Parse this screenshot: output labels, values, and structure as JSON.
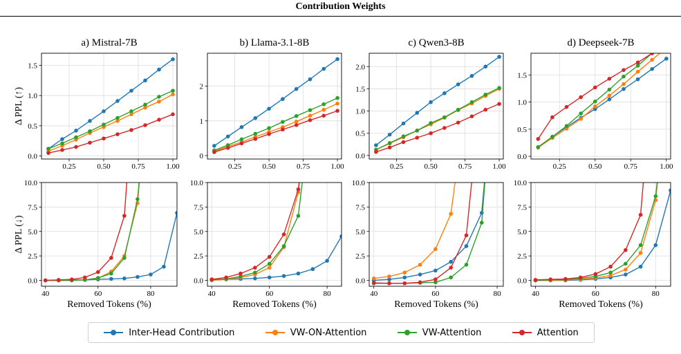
{
  "header": {
    "title": "Contribution Weights"
  },
  "legend": {
    "items": [
      {
        "label": "Inter-Head Contribution",
        "color": "#1f77b4"
      },
      {
        "label": "VW-ON-Attention",
        "color": "#ff7f0e"
      },
      {
        "label": "VW-Attention",
        "color": "#2ca02c"
      },
      {
        "label": "Attention",
        "color": "#d62728"
      }
    ]
  },
  "chart_data": [
    {
      "type": "line",
      "title": "a) Mistral-7B",
      "xlabel": "",
      "ylabel": "Δ PPL (↑)",
      "xlim": [
        0.05,
        1.03
      ],
      "ylim": [
        -0.05,
        1.7
      ],
      "xticks": [
        0.25,
        0.5,
        0.75,
        1.0
      ],
      "xticklabels": [
        "0.25",
        "0.50",
        "0.75",
        "1.00"
      ],
      "yticks": [
        0,
        0.5,
        1.0,
        1.5
      ],
      "yticklabels": [
        "0.0",
        "0.5",
        "1.0",
        "1.5"
      ],
      "x": [
        0.1,
        0.2,
        0.3,
        0.4,
        0.5,
        0.6,
        0.7,
        0.8,
        0.9,
        1.0
      ],
      "series": [
        {
          "name": "Inter-Head Contribution",
          "values": [
            0.12,
            0.28,
            0.42,
            0.58,
            0.74,
            0.91,
            1.08,
            1.25,
            1.43,
            1.6
          ]
        },
        {
          "name": "VW-ON-Attention",
          "values": [
            0.08,
            0.17,
            0.27,
            0.38,
            0.48,
            0.58,
            0.69,
            0.8,
            0.9,
            1.02
          ]
        },
        {
          "name": "VW-Attention",
          "values": [
            0.12,
            0.21,
            0.31,
            0.41,
            0.52,
            0.63,
            0.74,
            0.85,
            0.98,
            1.08
          ]
        },
        {
          "name": "Attention",
          "values": [
            0.05,
            0.1,
            0.15,
            0.22,
            0.29,
            0.36,
            0.43,
            0.51,
            0.6,
            0.69
          ]
        }
      ]
    },
    {
      "type": "line",
      "title": "b) Llama-3.1-8B",
      "xlabel": "",
      "ylabel": "",
      "xlim": [
        0.05,
        1.03
      ],
      "ylim": [
        -0.1,
        2.95
      ],
      "xticks": [
        0.25,
        0.5,
        0.75,
        1.0
      ],
      "xticklabels": [
        "0.25",
        "0.50",
        "0.75",
        "1.00"
      ],
      "yticks": [
        0,
        1,
        2
      ],
      "yticklabels": [
        "0",
        "1",
        "2"
      ],
      "x": [
        0.1,
        0.2,
        0.3,
        0.4,
        0.5,
        0.6,
        0.7,
        0.8,
        0.9,
        1.0
      ],
      "series": [
        {
          "name": "Inter-Head Contribution",
          "values": [
            0.28,
            0.55,
            0.82,
            1.08,
            1.35,
            1.63,
            1.92,
            2.2,
            2.5,
            2.78
          ]
        },
        {
          "name": "VW-ON-Attention",
          "values": [
            0.12,
            0.26,
            0.39,
            0.54,
            0.68,
            0.82,
            0.98,
            1.15,
            1.32,
            1.5
          ]
        },
        {
          "name": "VW-Attention",
          "values": [
            0.15,
            0.3,
            0.47,
            0.63,
            0.79,
            0.97,
            1.14,
            1.31,
            1.48,
            1.66
          ]
        },
        {
          "name": "Attention",
          "values": [
            0.1,
            0.22,
            0.35,
            0.48,
            0.62,
            0.75,
            0.88,
            1.02,
            1.15,
            1.29
          ]
        }
      ]
    },
    {
      "type": "line",
      "title": "c) Qwen3-8B",
      "xlabel": "",
      "ylabel": "",
      "xlim": [
        0.05,
        1.03
      ],
      "ylim": [
        -0.08,
        2.3
      ],
      "xticks": [
        0.25,
        0.5,
        0.75,
        1.0
      ],
      "xticklabels": [
        "0.25",
        "0.50",
        "0.75",
        "1.00"
      ],
      "yticks": [
        0,
        0.5,
        1.0,
        1.5,
        2.0
      ],
      "yticklabels": [
        "0.0",
        "0.5",
        "1.0",
        "1.5",
        "2.0"
      ],
      "x": [
        0.1,
        0.2,
        0.3,
        0.4,
        0.5,
        0.6,
        0.7,
        0.8,
        0.9,
        1.0
      ],
      "series": [
        {
          "name": "Inter-Head Contribution",
          "values": [
            0.23,
            0.47,
            0.72,
            0.96,
            1.2,
            1.4,
            1.6,
            1.79,
            2.0,
            2.22
          ]
        },
        {
          "name": "VW-ON-Attention",
          "values": [
            0.13,
            0.27,
            0.41,
            0.56,
            0.7,
            0.85,
            1.02,
            1.17,
            1.34,
            1.5
          ]
        },
        {
          "name": "VW-Attention",
          "values": [
            0.13,
            0.28,
            0.43,
            0.56,
            0.73,
            0.86,
            1.03,
            1.2,
            1.37,
            1.52
          ]
        },
        {
          "name": "Attention",
          "values": [
            0.08,
            0.18,
            0.3,
            0.4,
            0.5,
            0.62,
            0.74,
            0.88,
            1.03,
            1.16
          ]
        }
      ]
    },
    {
      "type": "line",
      "title": "d) Deepseek-7B",
      "xlabel": "",
      "ylabel": "",
      "xlim": [
        0.05,
        1.03
      ],
      "ylim": [
        -0.05,
        1.9
      ],
      "xticks": [
        0.25,
        0.5,
        0.75,
        1.0
      ],
      "xticklabels": [
        "0.25",
        "0.50",
        "0.75",
        "1.00"
      ],
      "yticks": [
        0,
        0.5,
        1.0,
        1.5
      ],
      "yticklabels": [
        "0.0",
        "0.5",
        "1.0",
        "1.5"
      ],
      "x": [
        0.1,
        0.2,
        0.3,
        0.4,
        0.5,
        0.6,
        0.7,
        0.8,
        0.9,
        1.0
      ],
      "series": [
        {
          "name": "Inter-Head Contribution",
          "values": [
            0.17,
            0.36,
            0.54,
            0.71,
            0.87,
            1.05,
            1.24,
            1.42,
            1.61,
            1.8
          ]
        },
        {
          "name": "VW-ON-Attention",
          "values": [
            0.16,
            0.34,
            0.51,
            0.69,
            0.92,
            1.12,
            1.33,
            1.56,
            1.78,
            2.0
          ]
        },
        {
          "name": "VW-Attention",
          "values": [
            0.17,
            0.36,
            0.56,
            0.79,
            1.01,
            1.23,
            1.47,
            1.67,
            1.9,
            2.1
          ]
        },
        {
          "name": "Attention",
          "values": [
            0.32,
            0.72,
            0.91,
            1.09,
            1.27,
            1.43,
            1.59,
            1.73,
            1.9,
            2.05
          ]
        }
      ]
    },
    {
      "type": "line",
      "title": "",
      "xlabel": "Removed Tokens (%)",
      "ylabel": "Δ PPL (↓)",
      "xlim": [
        38.5,
        90
      ],
      "ylim": [
        -0.6,
        10
      ],
      "xticks": [
        40,
        60,
        80
      ],
      "xticklabels": [
        "40",
        "60",
        "80"
      ],
      "yticks": [
        0,
        2.5,
        5.0,
        7.5,
        10.0
      ],
      "yticklabels": [
        "0.0",
        "2.5",
        "5.0",
        "7.5",
        "10.0"
      ],
      "series": [
        {
          "name": "Inter-Head Contribution",
          "x": [
            40,
            45,
            50,
            55,
            60,
            65,
            70,
            75,
            80,
            85,
            90
          ],
          "values": [
            0.0,
            0.0,
            0.05,
            0.05,
            0.1,
            0.15,
            0.2,
            0.35,
            0.6,
            1.4,
            6.9
          ]
        },
        {
          "name": "VW-ON-Attention",
          "x": [
            40,
            45,
            50,
            55,
            60,
            65,
            70,
            75,
            77
          ],
          "values": [
            0.0,
            0.0,
            0.0,
            0.05,
            0.2,
            0.9,
            2.5,
            7.9,
            14.0
          ]
        },
        {
          "name": "VW-Attention",
          "x": [
            40,
            45,
            50,
            55,
            60,
            65,
            70,
            75,
            77
          ],
          "values": [
            0.0,
            0.0,
            0.0,
            0.05,
            0.25,
            0.7,
            2.3,
            8.3,
            14.0
          ]
        },
        {
          "name": "Attention",
          "x": [
            40,
            45,
            50,
            55,
            60,
            65,
            70,
            72
          ],
          "values": [
            0.0,
            0.05,
            0.1,
            0.3,
            0.85,
            2.3,
            6.6,
            14.0
          ]
        }
      ]
    },
    {
      "type": "line",
      "title": "",
      "xlabel": "Removed Tokens (%)",
      "ylabel": "",
      "xlim": [
        38.5,
        85
      ],
      "ylim": [
        -0.6,
        10
      ],
      "xticks": [
        40,
        60,
        80
      ],
      "xticklabels": [
        "40",
        "60",
        "80"
      ],
      "yticks": [
        0,
        2.5,
        5.0,
        7.5,
        10.0
      ],
      "yticklabels": [
        "0.0",
        "2.5",
        "5.0",
        "7.5",
        "10.0"
      ],
      "series": [
        {
          "name": "Inter-Head Contribution",
          "x": [
            40,
            45,
            50,
            55,
            60,
            65,
            70,
            75,
            80,
            85,
            86
          ],
          "values": [
            0.1,
            0.1,
            0.15,
            0.2,
            0.3,
            0.45,
            0.7,
            1.15,
            2.0,
            4.5,
            7.2
          ]
        },
        {
          "name": "VW-ON-Attention",
          "x": [
            40,
            45,
            50,
            55,
            60,
            65,
            70,
            72
          ],
          "values": [
            0.0,
            0.1,
            0.3,
            0.6,
            1.3,
            3.4,
            9.0,
            14.0
          ]
        },
        {
          "name": "VW-Attention",
          "x": [
            40,
            45,
            50,
            55,
            60,
            65,
            70,
            73
          ],
          "values": [
            0.05,
            0.15,
            0.4,
            0.8,
            1.7,
            3.5,
            6.6,
            14.0
          ]
        },
        {
          "name": "Attention",
          "x": [
            40,
            45,
            50,
            55,
            60,
            65,
            70,
            72
          ],
          "values": [
            0.1,
            0.3,
            0.7,
            1.3,
            2.4,
            4.7,
            9.3,
            14.0
          ]
        }
      ]
    },
    {
      "type": "line",
      "title": "",
      "xlabel": "Removed Tokens (%)",
      "ylabel": "",
      "xlim": [
        38.5,
        82
      ],
      "ylim": [
        -0.6,
        10
      ],
      "xticks": [
        40,
        60,
        80
      ],
      "xticklabels": [
        "40",
        "60",
        "80"
      ],
      "yticks": [
        0,
        2.5,
        5.0,
        7.5,
        10.0
      ],
      "yticklabels": [
        "0.0",
        "2.5",
        "5.0",
        "7.5",
        "10.0"
      ],
      "series": [
        {
          "name": "Inter-Head Contribution",
          "x": [
            40,
            45,
            50,
            55,
            60,
            65,
            70,
            75,
            77
          ],
          "values": [
            0.0,
            0.1,
            0.3,
            0.6,
            1.0,
            1.9,
            3.5,
            6.9,
            14.0
          ]
        },
        {
          "name": "VW-ON-Attention",
          "x": [
            40,
            45,
            50,
            55,
            60,
            65,
            68
          ],
          "values": [
            0.2,
            0.4,
            0.8,
            1.6,
            3.2,
            6.8,
            14.0
          ]
        },
        {
          "name": "VW-Attention",
          "x": [
            40,
            45,
            50,
            55,
            60,
            65,
            70,
            75,
            77
          ],
          "values": [
            -0.3,
            -0.3,
            -0.3,
            -0.25,
            -0.2,
            0.3,
            1.6,
            5.9,
            14.0
          ]
        },
        {
          "name": "Attention",
          "x": [
            40,
            45,
            50,
            55,
            60,
            65,
            70,
            73
          ],
          "values": [
            -0.25,
            -0.3,
            -0.3,
            -0.2,
            0.1,
            1.3,
            4.6,
            14.0
          ]
        }
      ]
    },
    {
      "type": "line",
      "title": "",
      "xlabel": "Removed Tokens (%)",
      "ylabel": "",
      "xlim": [
        38.5,
        85
      ],
      "ylim": [
        -0.6,
        10
      ],
      "xticks": [
        40,
        60,
        80
      ],
      "xticklabels": [
        "40",
        "60",
        "80"
      ],
      "yticks": [
        0,
        2.5,
        5.0,
        7.5,
        10.0
      ],
      "yticklabels": [
        "0.0",
        "2.5",
        "5.0",
        "7.5",
        "10.0"
      ],
      "series": [
        {
          "name": "Inter-Head Contribution",
          "x": [
            40,
            45,
            50,
            55,
            60,
            65,
            70,
            75,
            80,
            85,
            87
          ],
          "values": [
            0.0,
            0.0,
            0.0,
            0.05,
            0.15,
            0.3,
            0.6,
            1.4,
            3.6,
            9.2,
            14.0
          ]
        },
        {
          "name": "VW-ON-Attention",
          "x": [
            40,
            45,
            50,
            55,
            60,
            65,
            70,
            75,
            80,
            82
          ],
          "values": [
            0.0,
            0.0,
            0.05,
            0.1,
            0.25,
            0.5,
            1.1,
            2.8,
            8.2,
            14.0
          ]
        },
        {
          "name": "VW-Attention",
          "x": [
            40,
            45,
            50,
            55,
            60,
            65,
            70,
            75,
            80,
            82
          ],
          "values": [
            0.0,
            0.05,
            0.1,
            0.2,
            0.4,
            0.8,
            1.7,
            3.6,
            8.6,
            14.0
          ]
        },
        {
          "name": "Attention",
          "x": [
            40,
            45,
            50,
            55,
            60,
            65,
            70,
            75,
            77
          ],
          "values": [
            0.05,
            0.1,
            0.15,
            0.3,
            0.65,
            1.4,
            3.1,
            6.7,
            14.0
          ]
        }
      ]
    }
  ]
}
